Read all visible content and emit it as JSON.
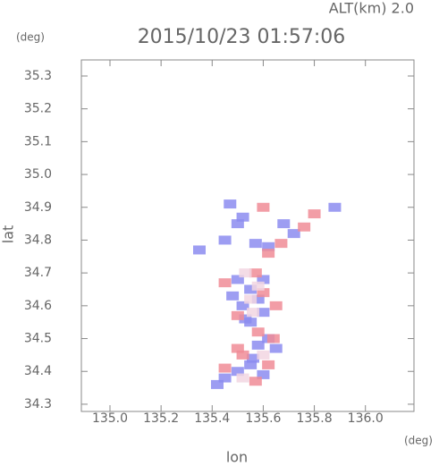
{
  "chart_data": {
    "type": "scatter",
    "title": "2015/10/23 01:57:06",
    "subtitle": "ALT(km) 2.0",
    "x_label": "lon",
    "y_label": "lat",
    "x_unit": "(deg)",
    "y_unit": "(deg)",
    "xlim": [
      134.888,
      136.19
    ],
    "ylim": [
      34.278,
      35.349
    ],
    "xticks": [
      {
        "value": 135,
        "label": "135.0"
      },
      135.2,
      135.4,
      135.6,
      135.8,
      {
        "value": 136,
        "label": "136.0"
      }
    ],
    "yticks": [
      34.3,
      34.4,
      34.5,
      34.6,
      34.7,
      34.8,
      34.9,
      {
        "value": 35,
        "label": "35.0"
      },
      35.1,
      35.2,
      35.3
    ],
    "series": [
      {
        "color": "#8c8cf0",
        "x": [
          135.47,
          135.52,
          135.5,
          135.45,
          135.62,
          135.57,
          135.68,
          135.72,
          135.5,
          135.55,
          135.58,
          135.52,
          135.6,
          135.48,
          135.55,
          135.62,
          135.58,
          135.65,
          135.55,
          135.5,
          135.6,
          135.45,
          135.42,
          135.56,
          135.53,
          135.6,
          135.35,
          135.88
        ],
        "y": [
          34.91,
          34.87,
          34.85,
          34.8,
          34.78,
          34.79,
          34.85,
          34.82,
          34.68,
          34.65,
          34.62,
          34.6,
          34.58,
          34.63,
          34.55,
          34.5,
          34.48,
          34.47,
          34.42,
          34.4,
          34.39,
          34.38,
          34.36,
          34.44,
          34.56,
          34.68,
          34.77,
          34.9
        ]
      },
      {
        "color": "#f08c96",
        "x": [
          135.6,
          135.76,
          135.8,
          135.67,
          135.62,
          135.45,
          135.6,
          135.57,
          135.5,
          135.65,
          135.58,
          135.64,
          135.52,
          135.62,
          135.45,
          135.57,
          135.5
        ],
        "y": [
          34.9,
          34.84,
          34.88,
          34.79,
          34.76,
          34.67,
          34.64,
          34.7,
          34.57,
          34.6,
          34.52,
          34.5,
          34.45,
          34.42,
          34.41,
          34.37,
          34.47
        ]
      },
      {
        "color": "#f2d6e2",
        "x": [
          135.55,
          135.58,
          135.53,
          135.56,
          135.6,
          135.52
        ],
        "y": [
          34.62,
          34.66,
          34.7,
          34.58,
          34.45,
          34.38
        ]
      }
    ]
  }
}
